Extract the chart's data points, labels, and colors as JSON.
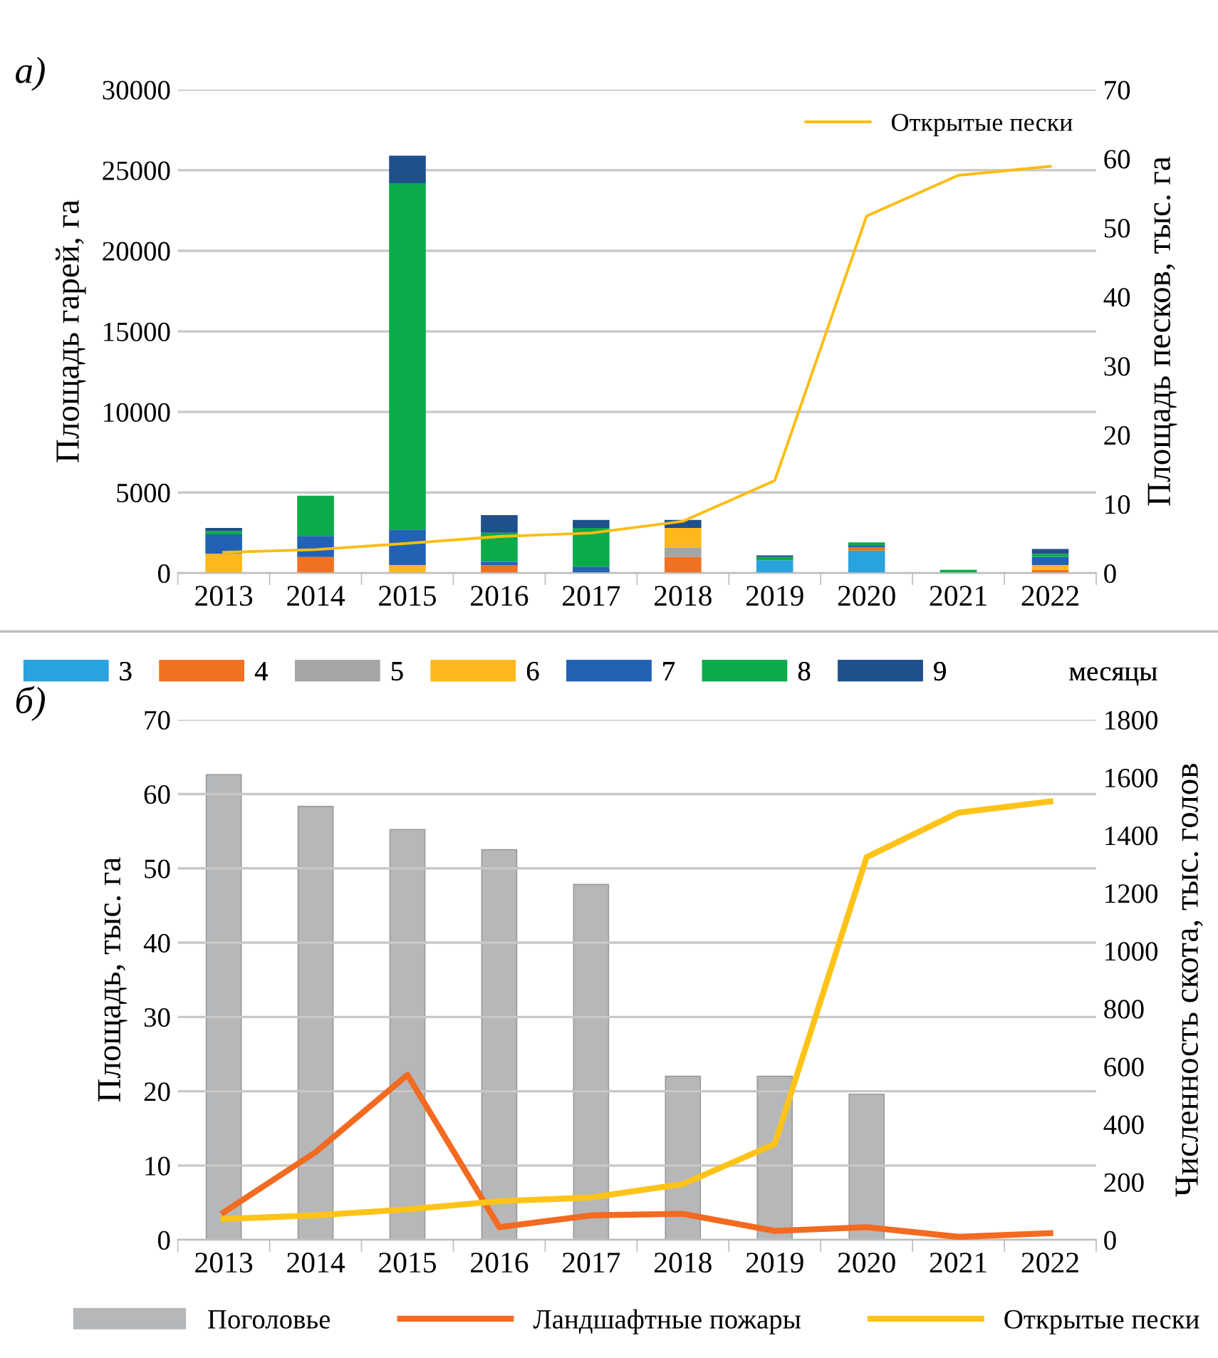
{
  "chart_data": [
    {
      "type": "bar",
      "title": "а)",
      "stacked": true,
      "ylabel": "Площадь гарей, га",
      "y2label": "Площадь песков, тыс. га",
      "categories": [
        "2013",
        "2014",
        "2015",
        "2016",
        "2017",
        "2018",
        "2019",
        "2020",
        "2021",
        "2022"
      ],
      "series": [
        {
          "name": "3",
          "color": "#29a3dd",
          "values": [
            0,
            0,
            0,
            0,
            0,
            0,
            800,
            1400,
            0,
            0
          ]
        },
        {
          "name": "4",
          "color": "#f07122",
          "values": [
            0,
            1000,
            0,
            500,
            0,
            1000,
            0,
            200,
            0,
            200
          ]
        },
        {
          "name": "5",
          "color": "#a5a5a5",
          "values": [
            0,
            0,
            0,
            0,
            0,
            600,
            0,
            0,
            0,
            0
          ]
        },
        {
          "name": "6",
          "color": "#ffb81c",
          "values": [
            1200,
            0,
            500,
            0,
            0,
            1200,
            0,
            0,
            0,
            300
          ]
        },
        {
          "name": "7",
          "color": "#2262b4",
          "values": [
            1200,
            1300,
            2200,
            200,
            400,
            0,
            0,
            100,
            0,
            500
          ]
        },
        {
          "name": "8",
          "color": "#0bab4a",
          "values": [
            200,
            2500,
            21500,
            1800,
            2400,
            0,
            200,
            200,
            200,
            200
          ]
        },
        {
          "name": "9",
          "color": "#1f4f8c",
          "values": [
            200,
            0,
            1700,
            1100,
            500,
            500,
            100,
            0,
            0,
            300
          ]
        },
        {
          "name": "Открытые пески",
          "type": "line",
          "axis": "y2",
          "color": "#fbbd14",
          "values": [
            3.0,
            3.4,
            4.3,
            5.3,
            5.8,
            7.5,
            13.4,
            51.7,
            57.6,
            58.9
          ]
        }
      ],
      "legend_title": "месяцы",
      "legend": "bottom",
      "grid": "y",
      "ylim": [
        0,
        30000
      ],
      "yticks": [
        0,
        5000,
        10000,
        15000,
        20000,
        25000,
        30000
      ],
      "y2lim": [
        0,
        70
      ],
      "y2ticks": [
        0,
        10,
        20,
        30,
        40,
        50,
        60,
        70
      ]
    },
    {
      "type": "bar",
      "title": "б)",
      "ylabel": "Площадь, тыс. га",
      "y2label": "Численность скота, тыс. голов",
      "categories": [
        "2013",
        "2014",
        "2015",
        "2016",
        "2017",
        "2018",
        "2019",
        "2020",
        "2021",
        "2022"
      ],
      "series": [
        {
          "name": "Поголовье",
          "axis": "y2",
          "color": "#b5b7b9",
          "values": [
            1610,
            1500,
            1420,
            1350,
            1230,
            566,
            566,
            504,
            null,
            null
          ]
        },
        {
          "name": "Ландшафтные пожары",
          "type": "line",
          "color": "#f36a21",
          "values": [
            3.7,
            11.8,
            22.2,
            1.7,
            3.3,
            3.5,
            1.2,
            1.7,
            0.4,
            0.9
          ]
        },
        {
          "name": "Открытые пески",
          "type": "line",
          "color": "#fdc318",
          "values": [
            2.8,
            3.3,
            4.1,
            5.2,
            5.7,
            7.5,
            12.9,
            51.5,
            57.5,
            59.0
          ]
        }
      ],
      "legend": "bottom",
      "grid": "y",
      "ylim": [
        0,
        70
      ],
      "yticks": [
        0,
        10,
        20,
        30,
        40,
        50,
        60,
        70
      ],
      "y2lim": [
        0,
        1800
      ],
      "y2ticks": [
        0,
        200,
        400,
        600,
        800,
        1000,
        1200,
        1400,
        1600,
        1800
      ]
    }
  ]
}
